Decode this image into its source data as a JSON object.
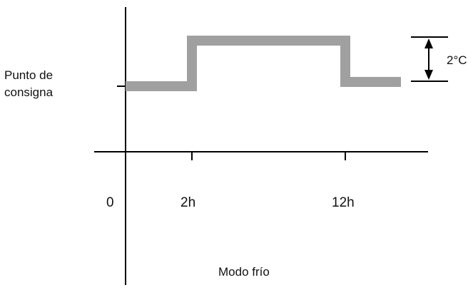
{
  "diagram": {
    "setpoint_label_line1": "Punto de",
    "setpoint_label_line2": "consigna",
    "delta_label": "2°C",
    "x_ticks": [
      "0",
      "2h",
      "12h"
    ],
    "mode_label": "Modo frío"
  },
  "colors": {
    "profile": "#a0a0a0",
    "axis": "#000000",
    "text": "#111111"
  }
}
